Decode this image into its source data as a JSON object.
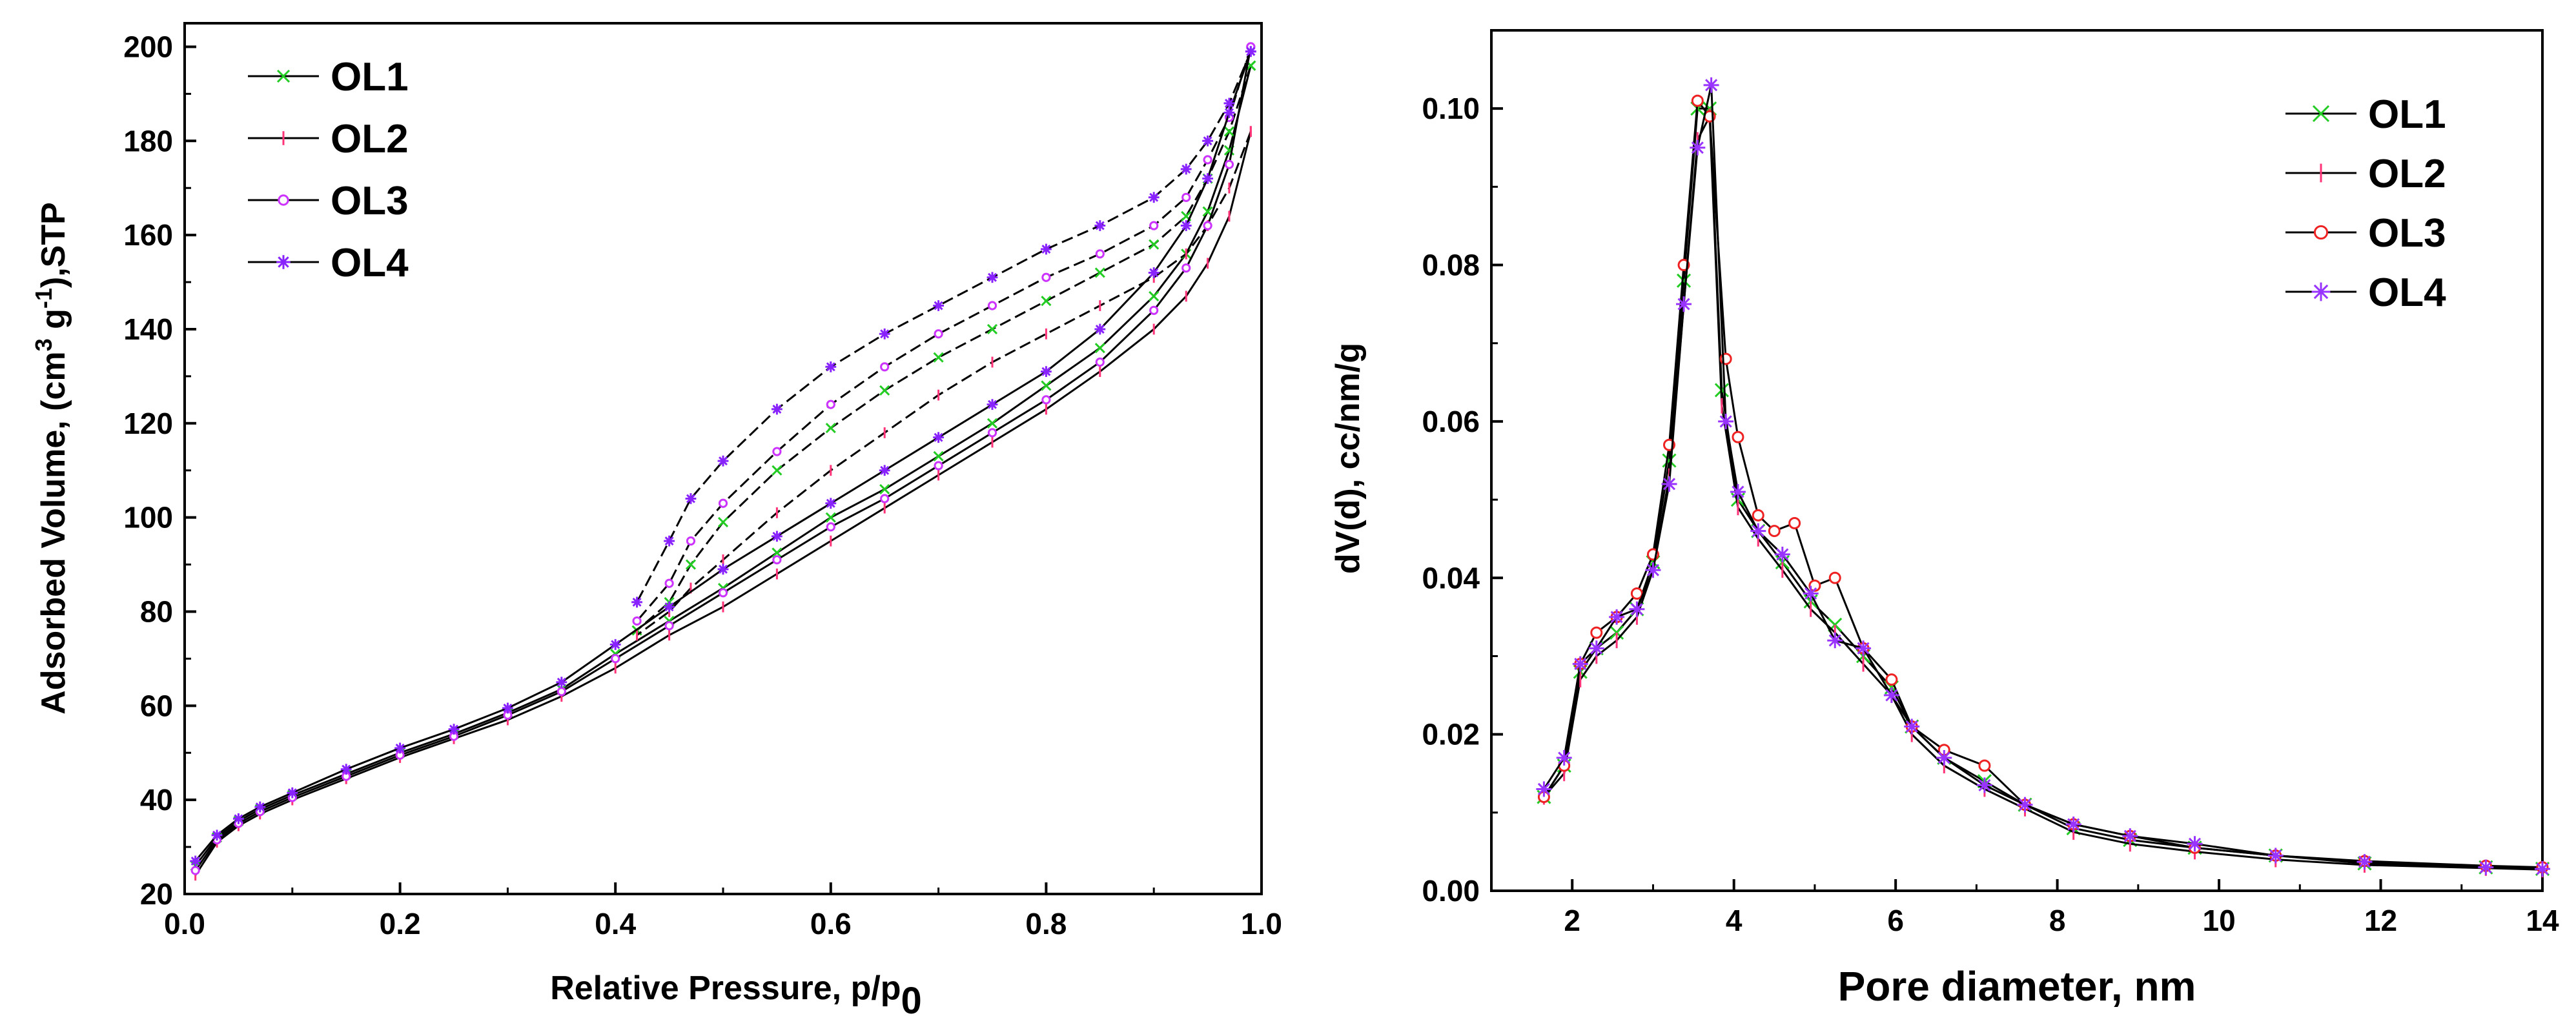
{
  "chart_data": [
    {
      "type": "line",
      "title": "",
      "xlabel": "Relative Pressure, p/p",
      "xlabel_sub": "0",
      "ylabel": "Adsorbed Volume, (cm",
      "ylabel_sup": "3",
      "ylabel_mid": " g",
      "ylabel_sup2": "-1",
      "ylabel_end": "),STP",
      "xlim": [
        0.0,
        1.0
      ],
      "ylim": [
        20,
        205
      ],
      "xticks": [
        0.0,
        0.2,
        0.4,
        0.6,
        0.8,
        1.0
      ],
      "xtick_labels": [
        "0.0",
        "0.2",
        "0.4",
        "0.6",
        "0.8",
        "1.0"
      ],
      "yticks": [
        20,
        40,
        60,
        80,
        100,
        120,
        140,
        160,
        180,
        200
      ],
      "ytick_labels": [
        "20",
        "40",
        "60",
        "80",
        "100",
        "120",
        "140",
        "160",
        "180",
        "200"
      ],
      "legend_position": "top-left",
      "series": [
        {
          "name": "OL1",
          "color": "#22cc22",
          "marker": "x",
          "adsorption": {
            "x": [
              0.01,
              0.03,
              0.05,
              0.07,
              0.1,
              0.15,
              0.2,
              0.25,
              0.3,
              0.35,
              0.4,
              0.45,
              0.5,
              0.55,
              0.6,
              0.65,
              0.7,
              0.75,
              0.8,
              0.85,
              0.9,
              0.93,
              0.95,
              0.97,
              0.99
            ],
            "y": [
              26,
              32,
              35.5,
              38,
              41,
              45.5,
              50,
              54,
              58.5,
              63.5,
              71,
              78,
              85,
              92.5,
              100,
              106,
              113,
              120,
              128,
              136,
              147,
              156,
              165,
              178,
              196
            ]
          },
          "desorption": {
            "x": [
              0.99,
              0.97,
              0.95,
              0.93,
              0.9,
              0.85,
              0.8,
              0.75,
              0.7,
              0.65,
              0.6,
              0.55,
              0.5,
              0.47,
              0.45,
              0.42
            ],
            "y": [
              196,
              182,
              172,
              164,
              158,
              152,
              146,
              140,
              134,
              127,
              119,
              110,
              99,
              90,
              82,
              76
            ]
          }
        },
        {
          "name": "OL2",
          "color": "#ff3377",
          "marker": "|",
          "adsorption": {
            "x": [
              0.01,
              0.03,
              0.05,
              0.07,
              0.1,
              0.15,
              0.2,
              0.25,
              0.3,
              0.35,
              0.4,
              0.45,
              0.5,
              0.55,
              0.6,
              0.65,
              0.7,
              0.75,
              0.8,
              0.85,
              0.9,
              0.93,
              0.95,
              0.97,
              0.99
            ],
            "y": [
              24,
              31,
              34.5,
              37,
              40,
              44.5,
              49,
              53,
              57,
              62,
              68,
              75,
              81,
              88,
              95,
              102,
              109,
              116,
              123,
              131,
              140,
              147,
              154,
              164,
              182
            ]
          },
          "desorption": {
            "x": [
              0.99,
              0.97,
              0.95,
              0.93,
              0.9,
              0.85,
              0.8,
              0.75,
              0.7,
              0.65,
              0.6,
              0.55,
              0.5,
              0.47,
              0.45,
              0.42
            ],
            "y": [
              182,
              170,
              162,
              156,
              151,
              145,
              139,
              133,
              126,
              118,
              110,
              101,
              91,
              85,
              80,
              75
            ]
          }
        },
        {
          "name": "OL3",
          "color": "#cc33ff",
          "marker": "o",
          "adsorption": {
            "x": [
              0.01,
              0.03,
              0.05,
              0.07,
              0.1,
              0.15,
              0.2,
              0.25,
              0.3,
              0.35,
              0.4,
              0.45,
              0.5,
              0.55,
              0.6,
              0.65,
              0.7,
              0.75,
              0.8,
              0.85,
              0.9,
              0.93,
              0.95,
              0.97,
              0.99
            ],
            "y": [
              25,
              31.5,
              35,
              37.5,
              40.5,
              45,
              49.5,
              53.5,
              58,
              63,
              70,
              77,
              84,
              91,
              98,
              104,
              111,
              118,
              125,
              133,
              144,
              153,
              162,
              175,
              200
            ]
          },
          "desorption": {
            "x": [
              0.99,
              0.97,
              0.95,
              0.93,
              0.9,
              0.85,
              0.8,
              0.75,
              0.7,
              0.65,
              0.6,
              0.55,
              0.5,
              0.47,
              0.45,
              0.42
            ],
            "y": [
              200,
              185,
              176,
              168,
              162,
              156,
              151,
              145,
              139,
              132,
              124,
              114,
              103,
              95,
              86,
              78
            ]
          }
        },
        {
          "name": "OL4",
          "color": "#8822ff",
          "marker": "*",
          "adsorption": {
            "x": [
              0.01,
              0.03,
              0.05,
              0.07,
              0.1,
              0.15,
              0.2,
              0.25,
              0.3,
              0.35,
              0.4,
              0.45,
              0.5,
              0.55,
              0.6,
              0.65,
              0.7,
              0.75,
              0.8,
              0.85,
              0.9,
              0.93,
              0.95,
              0.97,
              0.99
            ],
            "y": [
              27,
              32.5,
              36,
              38.5,
              41.5,
              46.5,
              51,
              55,
              59.5,
              65,
              73,
              81,
              89,
              96,
              103,
              110,
              117,
              124,
              131,
              140,
              152,
              162,
              172,
              186,
              199
            ]
          },
          "desorption": {
            "x": [
              0.99,
              0.97,
              0.95,
              0.93,
              0.9,
              0.85,
              0.8,
              0.75,
              0.7,
              0.65,
              0.6,
              0.55,
              0.5,
              0.47,
              0.45,
              0.42
            ],
            "y": [
              199,
              188,
              180,
              174,
              168,
              162,
              157,
              151,
              145,
              139,
              132,
              123,
              112,
              104,
              95,
              82
            ]
          }
        }
      ]
    },
    {
      "type": "line",
      "title": "",
      "xlabel": "Pore diameter, nm",
      "ylabel": "dV(d), cc/nm/g",
      "xlim": [
        1.0,
        14.0
      ],
      "ylim": [
        0.0,
        0.11
      ],
      "xticks": [
        2,
        4,
        6,
        8,
        10,
        12,
        14
      ],
      "xtick_labels": [
        "2",
        "4",
        "6",
        "8",
        "10",
        "12",
        "14"
      ],
      "yticks": [
        0.0,
        0.02,
        0.04,
        0.06,
        0.08,
        0.1
      ],
      "ytick_labels": [
        "0.00",
        "0.02",
        "0.04",
        "0.06",
        "0.08",
        "0.10"
      ],
      "legend_position": "top-right",
      "series": [
        {
          "name": "OL1",
          "color": "#22cc22",
          "marker": "x",
          "x": [
            1.65,
            1.9,
            2.1,
            2.3,
            2.55,
            2.8,
            3.0,
            3.2,
            3.38,
            3.55,
            3.7,
            3.85,
            4.05,
            4.3,
            4.6,
            4.95,
            5.25,
            5.6,
            5.95,
            6.2,
            6.6,
            7.1,
            7.6,
            8.2,
            8.9,
            9.7,
            10.7,
            11.8,
            13.3,
            14.0
          ],
          "y": [
            0.012,
            0.016,
            0.028,
            0.031,
            0.033,
            0.036,
            0.042,
            0.055,
            0.078,
            0.1,
            0.1,
            0.064,
            0.05,
            0.046,
            0.042,
            0.037,
            0.034,
            0.03,
            0.026,
            0.021,
            0.017,
            0.014,
            0.011,
            0.008,
            0.0065,
            0.0055,
            0.0045,
            0.0035,
            0.003,
            0.0028
          ]
        },
        {
          "name": "OL2",
          "color": "#ff3377",
          "marker": "|",
          "x": [
            1.65,
            1.9,
            2.1,
            2.3,
            2.55,
            2.8,
            3.0,
            3.2,
            3.38,
            3.55,
            3.7,
            3.85,
            4.05,
            4.3,
            4.6,
            4.95,
            5.25,
            5.6,
            5.95,
            6.2,
            6.6,
            7.1,
            7.6,
            8.2,
            8.9,
            9.7,
            10.7,
            11.8,
            13.3,
            14.0
          ],
          "y": [
            0.012,
            0.015,
            0.027,
            0.03,
            0.032,
            0.035,
            0.041,
            0.053,
            0.075,
            0.096,
            0.099,
            0.062,
            0.049,
            0.045,
            0.041,
            0.036,
            0.033,
            0.029,
            0.025,
            0.02,
            0.016,
            0.013,
            0.0105,
            0.0075,
            0.006,
            0.005,
            0.004,
            0.0033,
            0.0029,
            0.0027
          ]
        },
        {
          "name": "OL3",
          "color": "#ee2222",
          "marker": "o",
          "x": [
            1.65,
            1.9,
            2.1,
            2.3,
            2.55,
            2.8,
            3.0,
            3.2,
            3.38,
            3.55,
            3.7,
            3.9,
            4.05,
            4.3,
            4.5,
            4.75,
            5.0,
            5.25,
            5.6,
            5.95,
            6.2,
            6.6,
            7.1,
            7.6,
            8.2,
            8.9,
            9.7,
            10.7,
            11.8,
            13.3,
            14.0
          ],
          "y": [
            0.012,
            0.016,
            0.029,
            0.033,
            0.035,
            0.038,
            0.043,
            0.057,
            0.08,
            0.101,
            0.099,
            0.068,
            0.058,
            0.048,
            0.046,
            0.047,
            0.039,
            0.04,
            0.031,
            0.027,
            0.021,
            0.018,
            0.016,
            0.011,
            0.0085,
            0.007,
            0.0055,
            0.0045,
            0.0038,
            0.0032,
            0.003
          ]
        },
        {
          "name": "OL4",
          "color": "#9933ff",
          "marker": "*",
          "x": [
            1.65,
            1.9,
            2.1,
            2.3,
            2.55,
            2.8,
            3.0,
            3.2,
            3.38,
            3.55,
            3.72,
            3.9,
            4.05,
            4.3,
            4.6,
            4.95,
            5.25,
            5.6,
            5.95,
            6.2,
            6.6,
            7.1,
            7.6,
            8.2,
            8.9,
            9.7,
            10.7,
            11.8,
            13.3,
            14.0
          ],
          "y": [
            0.013,
            0.017,
            0.029,
            0.031,
            0.035,
            0.036,
            0.041,
            0.052,
            0.075,
            0.095,
            0.103,
            0.06,
            0.051,
            0.046,
            0.043,
            0.038,
            0.032,
            0.031,
            0.025,
            0.021,
            0.017,
            0.0135,
            0.011,
            0.0085,
            0.007,
            0.006,
            0.0045,
            0.0037,
            0.003,
            0.0028
          ]
        }
      ]
    }
  ]
}
